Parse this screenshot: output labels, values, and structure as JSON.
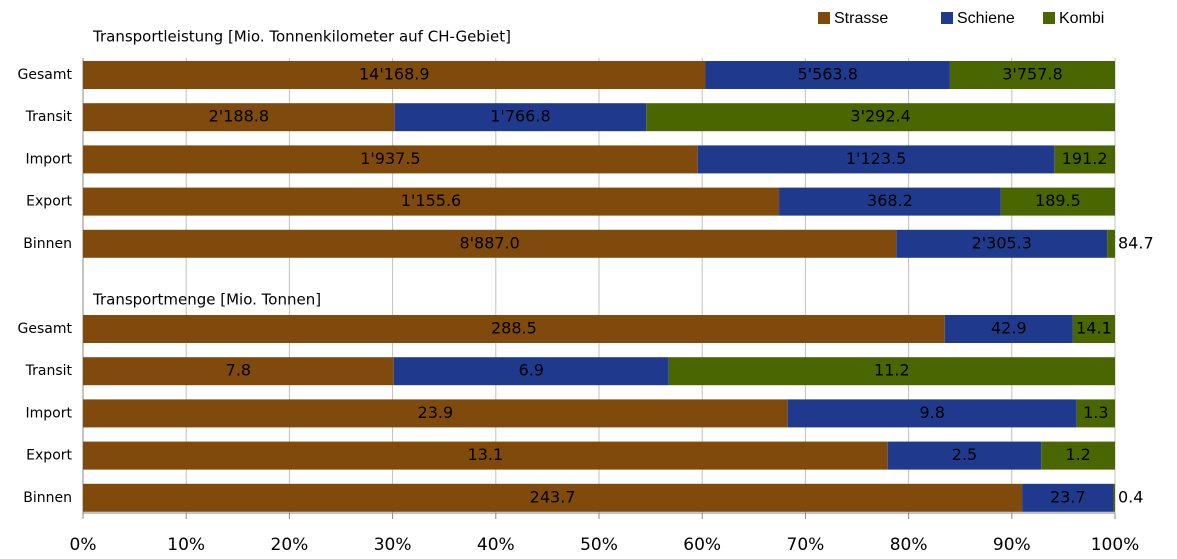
{
  "chart_data": [
    {
      "type": "stacked-bar-100",
      "title": "Transportleistung [Mio. Tonnenkilometer auf CH-Gebiet]",
      "categories": [
        "Gesamt",
        "Transit",
        "Import",
        "Export",
        "Binnen"
      ],
      "series": [
        {
          "name": "Strasse",
          "color": "#7f4a0c",
          "values": [
            14168.9,
            2188.8,
            1937.5,
            1155.6,
            8887.0
          ],
          "value_labels": [
            "14'168.9",
            "2'188.8",
            "1'937.5",
            "1'155.6",
            "8'887.0"
          ]
        },
        {
          "name": "Schiene",
          "color": "#1f3a8c",
          "values": [
            5563.8,
            1766.8,
            1123.5,
            368.2,
            2305.3
          ],
          "value_labels": [
            "5'563.8",
            "1'766.8",
            "1'123.5",
            "368.2",
            "2'305.3"
          ]
        },
        {
          "name": "Kombi",
          "color": "#4a6600",
          "values": [
            3757.8,
            3292.4,
            191.2,
            189.5,
            84.7
          ],
          "value_labels": [
            "3'757.8",
            "3'292.4",
            "191.2",
            "189.5",
            "84.7"
          ]
        }
      ]
    },
    {
      "type": "stacked-bar-100",
      "title": "Transportmenge [Mio. Tonnen]",
      "categories": [
        "Gesamt",
        "Transit",
        "Import",
        "Export",
        "Binnen"
      ],
      "series": [
        {
          "name": "Strasse",
          "color": "#7f4a0c",
          "values": [
            288.5,
            7.8,
            23.9,
            13.1,
            243.7
          ]
        },
        {
          "name": "Schiene",
          "color": "#1f3a8c",
          "values": [
            42.9,
            6.9,
            9.8,
            2.5,
            23.7
          ]
        },
        {
          "name": "Kombi",
          "color": "#4a6600",
          "values": [
            14.1,
            11.2,
            1.3,
            1.2,
            0.4
          ]
        }
      ],
      "xlim": [
        0,
        100
      ],
      "xticks": [
        {
          "value": 0,
          "label": "0%"
        },
        {
          "value": 10,
          "label": "10%"
        },
        {
          "value": 20,
          "label": "20%"
        },
        {
          "value": 30,
          "label": "30%"
        },
        {
          "value": 40,
          "label": "40%"
        },
        {
          "value": 50,
          "label": "50%"
        },
        {
          "value": 60,
          "label": "60%"
        },
        {
          "value": 70,
          "label": "70%"
        },
        {
          "value": 80,
          "label": "80%"
        },
        {
          "value": 90,
          "label": "90%"
        },
        {
          "value": 100,
          "label": "100%"
        }
      ],
      "grid": true
    }
  ]
}
